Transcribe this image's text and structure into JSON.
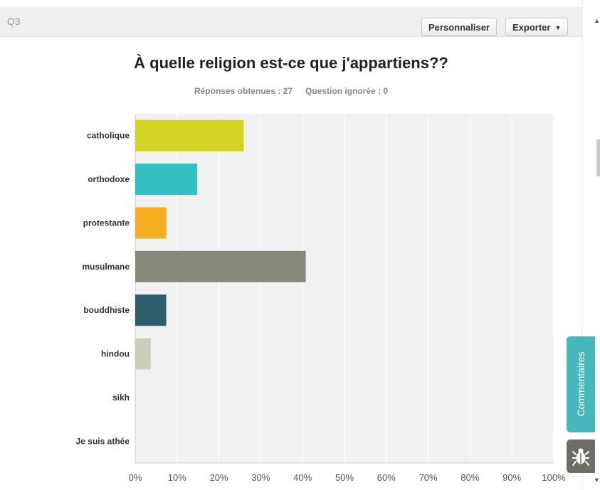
{
  "question": {
    "number": "Q3",
    "customize_label": "Personnaliser",
    "export_label": "Exporter",
    "title": "À quelle religion est-ce que j'appartiens??",
    "answered": "Réponses obtenues : 27",
    "skipped": "Question ignorée : 0"
  },
  "side": {
    "comments_label": "Commentaires",
    "bug_icon": "bug-icon"
  },
  "chart_data": {
    "type": "bar",
    "orientation": "horizontal",
    "categories": [
      "catholique",
      "orthodoxe",
      "protestante",
      "musulmane",
      "bouddhiste",
      "hindou",
      "sikh",
      "Je suis athée"
    ],
    "values": [
      25.93,
      14.81,
      7.41,
      40.74,
      7.41,
      3.7,
      0,
      0
    ],
    "colors": [
      "#d3d324",
      "#33bfc1",
      "#f5ae22",
      "#87877a",
      "#2e5d6b",
      "#cdcdbb",
      "#cccccc",
      "#cccccc"
    ],
    "xlim": [
      0,
      100
    ],
    "xticks": [
      "0%",
      "10%",
      "20%",
      "30%",
      "40%",
      "50%",
      "60%",
      "70%",
      "80%",
      "90%",
      "100%"
    ],
    "grid": true,
    "plot_background": "#f1f1f1"
  }
}
